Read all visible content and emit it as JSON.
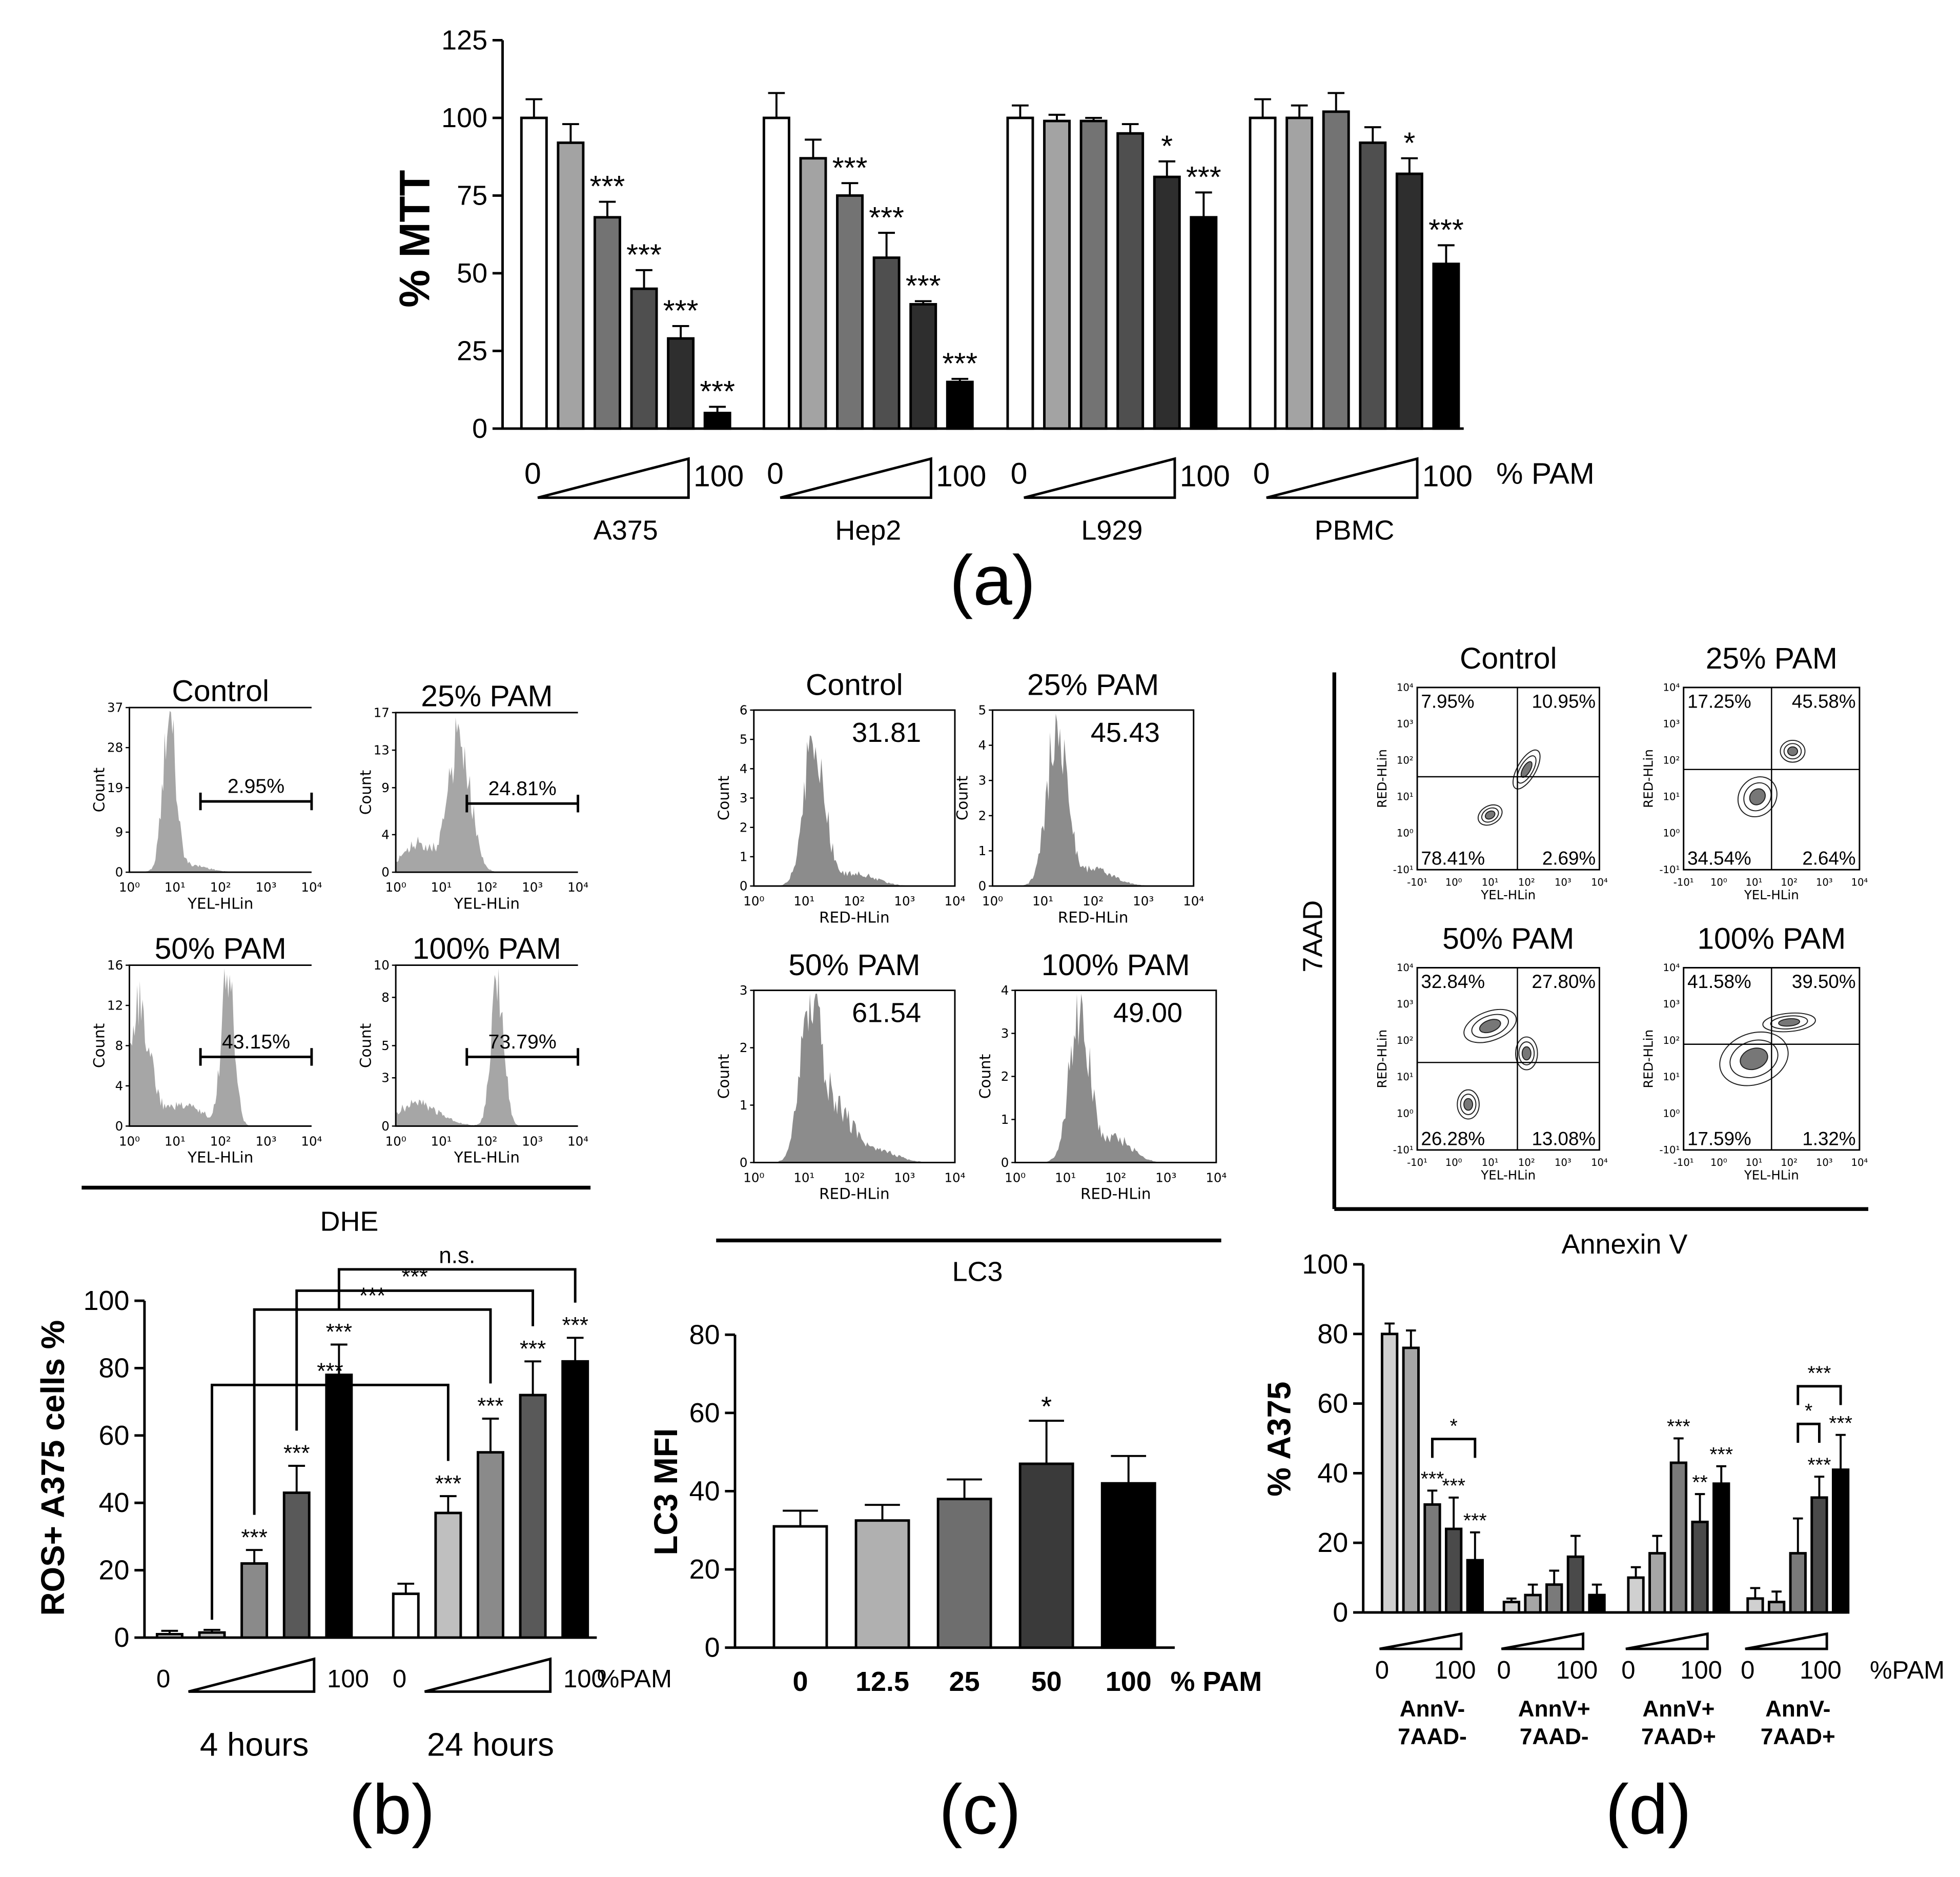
{
  "chart_data": [
    {
      "type": "bar",
      "panel_label": "(a)",
      "ylabel": "% MTT",
      "ylim": [
        0,
        125
      ],
      "yticks": [
        0,
        25,
        50,
        75,
        100,
        125
      ],
      "colors": [
        "#ffffff",
        "#a3a3a3",
        "#737373",
        "#4f4f4f",
        "#2e2e2e",
        "#000000"
      ],
      "dose_labels": [
        "0",
        "100"
      ],
      "dose_unit": "% PAM",
      "groups": [
        {
          "name": [
            "A375"
          ],
          "values": [
            100,
            92,
            68,
            45,
            29,
            5
          ],
          "errors": [
            6,
            6,
            5,
            6,
            4,
            2
          ],
          "annotations": [
            null,
            null,
            "***",
            "***",
            "***",
            "***"
          ]
        },
        {
          "name": [
            "Hep2"
          ],
          "values": [
            100,
            87,
            75,
            55,
            40,
            15
          ],
          "errors": [
            8,
            6,
            4,
            8,
            1,
            1
          ],
          "annotations": [
            null,
            null,
            "***",
            "***",
            "***",
            "***"
          ]
        },
        {
          "name": [
            "L929"
          ],
          "values": [
            100,
            99,
            99,
            95,
            81,
            68
          ],
          "errors": [
            4,
            2,
            1,
            3,
            5,
            8
          ],
          "annotations": [
            null,
            null,
            null,
            null,
            "*",
            "***"
          ]
        },
        {
          "name": [
            "PBMC"
          ],
          "values": [
            100,
            100,
            102,
            92,
            82,
            53
          ],
          "errors": [
            6,
            4,
            6,
            5,
            5,
            6
          ],
          "annotations": [
            null,
            null,
            null,
            null,
            "*",
            "***"
          ]
        }
      ]
    },
    {
      "type": "bar",
      "panel_label": "(b)",
      "ylabel": "ROS+ A375 cells  %",
      "ylim": [
        0,
        100
      ],
      "yticks": [
        0,
        20,
        40,
        60,
        80,
        100
      ],
      "colors": [
        "#ffffff",
        "#bfbfbf",
        "#8a8a8a",
        "#595959",
        "#000000"
      ],
      "dose_labels": [
        "0",
        "100"
      ],
      "dose_unit": "%PAM",
      "groups": [
        {
          "name": [
            "4 hours"
          ],
          "values": [
            1,
            1.5,
            22,
            43,
            78
          ],
          "errors": [
            1,
            0.8,
            4,
            8,
            9
          ],
          "annotations": [
            null,
            null,
            "***",
            "***",
            "***"
          ]
        },
        {
          "name": [
            "24 hours"
          ],
          "values": [
            13,
            37,
            55,
            72,
            82
          ],
          "errors": [
            3,
            5,
            10,
            10,
            7
          ],
          "annotations": [
            null,
            "***",
            "***",
            "***",
            "***"
          ]
        }
      ],
      "comparisons": [
        {
          "from": [
            0,
            1
          ],
          "to": [
            1,
            1
          ],
          "label": "***"
        },
        {
          "from": [
            0,
            2
          ],
          "to": [
            1,
            2
          ],
          "label": "***"
        },
        {
          "from": [
            0,
            3
          ],
          "to": [
            1,
            3
          ],
          "label": "***"
        },
        {
          "from": [
            0,
            4
          ],
          "to": [
            1,
            4
          ],
          "label": "n.s."
        }
      ]
    },
    {
      "type": "bar",
      "panel_label": "(c)",
      "ylabel": "LC3 MFI",
      "ylim": [
        0,
        80
      ],
      "yticks": [
        0,
        20,
        40,
        60,
        80
      ],
      "colors": [
        "#ffffff",
        "#b0b0b0",
        "#6e6e6e",
        "#3a3a3a",
        "#000000"
      ],
      "categories": [
        "0",
        "12.5",
        "25",
        "50",
        "100"
      ],
      "values": [
        31,
        32.5,
        38,
        47,
        42
      ],
      "errors": [
        4,
        4,
        5,
        11,
        7
      ],
      "annotations": [
        null,
        null,
        null,
        "*",
        null
      ],
      "xlabel": "% PAM"
    },
    {
      "type": "bar",
      "panel_label": "(d)",
      "ylabel": "% A375",
      "ylim": [
        0,
        100
      ],
      "yticks": [
        0,
        20,
        40,
        60,
        80,
        100
      ],
      "colors": [
        "#d0d0d0",
        "#a6a6a6",
        "#7a7a7a",
        "#4a4a4a",
        "#000000"
      ],
      "dose_labels": [
        "0",
        "100"
      ],
      "dose_unit": "%PAM",
      "groups": [
        {
          "name": [
            "AnnV-",
            "7AAD-"
          ],
          "values": [
            80,
            76,
            31,
            24,
            15
          ],
          "errors": [
            3,
            5,
            4,
            9,
            8
          ],
          "annotations": [
            null,
            null,
            "***",
            "***",
            "***"
          ]
        },
        {
          "name": [
            "AnnV+",
            "7AAD-"
          ],
          "values": [
            3,
            5,
            8,
            16,
            5
          ],
          "errors": [
            1,
            3,
            4,
            6,
            3
          ],
          "annotations": [
            null,
            null,
            null,
            null,
            null
          ]
        },
        {
          "name": [
            "AnnV+",
            "7AAD+"
          ],
          "values": [
            10,
            17,
            43,
            26,
            37
          ],
          "errors": [
            3,
            5,
            7,
            8,
            5
          ],
          "annotations": [
            null,
            null,
            "***",
            "**",
            "***"
          ]
        },
        {
          "name": [
            "AnnV-",
            "7AAD+"
          ],
          "values": [
            4,
            3,
            17,
            33,
            41
          ],
          "errors": [
            3,
            3,
            10,
            6,
            10
          ],
          "annotations": [
            null,
            null,
            null,
            "***",
            "***"
          ]
        }
      ],
      "comparisons": [
        {
          "from": [
            0,
            2
          ],
          "to": [
            0,
            4
          ],
          "label": "*"
        },
        {
          "from": [
            3,
            2
          ],
          "to": [
            3,
            3
          ],
          "label": "*"
        },
        {
          "from": [
            3,
            2
          ],
          "to": [
            3,
            4
          ],
          "label": "***"
        }
      ]
    }
  ],
  "flow": {
    "dhe": {
      "label": "DHE",
      "xlabel": "YEL-HLin",
      "ylabel": "Count",
      "xticks": [
        "10⁰",
        "10¹",
        "10²",
        "10³",
        "10⁴"
      ],
      "plots": [
        {
          "title": "Control",
          "ylim": [
            0,
            37
          ],
          "yticks": [
            0,
            9,
            19,
            28,
            37
          ],
          "gate_label": "2.95%"
        },
        {
          "title": "25% PAM",
          "ylim": [
            0,
            17
          ],
          "yticks": [
            0,
            4,
            9,
            13,
            17
          ],
          "gate_label": "24.81%"
        },
        {
          "title": "50% PAM",
          "ylim": [
            0,
            16
          ],
          "yticks": [
            0,
            4,
            8,
            12,
            16
          ],
          "gate_label": "43.15%"
        },
        {
          "title": "100% PAM",
          "ylim": [
            0,
            10
          ],
          "yticks": [
            0,
            3,
            5,
            8,
            10
          ],
          "gate_label": "73.79%"
        }
      ]
    },
    "lc3": {
      "label": "LC3",
      "xlabel": "RED-HLin",
      "ylabel": "Count",
      "xticks": [
        "10⁰",
        "10¹",
        "10²",
        "10³",
        "10⁴"
      ],
      "plots": [
        {
          "title": "Control",
          "ylim": [
            0,
            6
          ],
          "yticks": [
            0,
            1,
            2,
            3,
            4,
            5,
            6
          ],
          "value_label": "31.81"
        },
        {
          "title": "25% PAM",
          "ylim": [
            0,
            5
          ],
          "yticks": [
            0,
            1,
            2,
            3,
            4,
            5
          ],
          "value_label": "45.43"
        },
        {
          "title": "50% PAM",
          "ylim": [
            0,
            3
          ],
          "yticks": [
            0,
            1,
            2,
            3
          ],
          "value_label": "61.54"
        },
        {
          "title": "100% PAM",
          "ylim": [
            0,
            4
          ],
          "yticks": [
            0,
            1,
            2,
            3,
            4
          ],
          "value_label": "49.00"
        }
      ]
    },
    "annexin": {
      "xaxis_title": "Annexin V",
      "yaxis_title": "7AAD",
      "xlabel": "YEL-HLin",
      "ylabel": "RED-HLin",
      "xticks": [
        "-10¹",
        "10⁰",
        "10¹",
        "10²",
        "10³",
        "10⁴"
      ],
      "yticks": [
        "-10¹",
        "10⁰",
        "10¹",
        "10²",
        "10³",
        "10⁴"
      ],
      "plots": [
        {
          "title": "Control",
          "quadrants": [
            "7.95%",
            "10.95%",
            "78.41%",
            "2.69%"
          ]
        },
        {
          "title": "25% PAM",
          "quadrants": [
            "17.25%",
            "45.58%",
            "34.54%",
            "2.64%"
          ]
        },
        {
          "title": "50% PAM",
          "quadrants": [
            "32.84%",
            "27.80%",
            "26.28%",
            "13.08%"
          ]
        },
        {
          "title": "100% PAM",
          "quadrants": [
            "41.58%",
            "39.50%",
            "17.59%",
            "1.32%"
          ]
        }
      ]
    }
  }
}
